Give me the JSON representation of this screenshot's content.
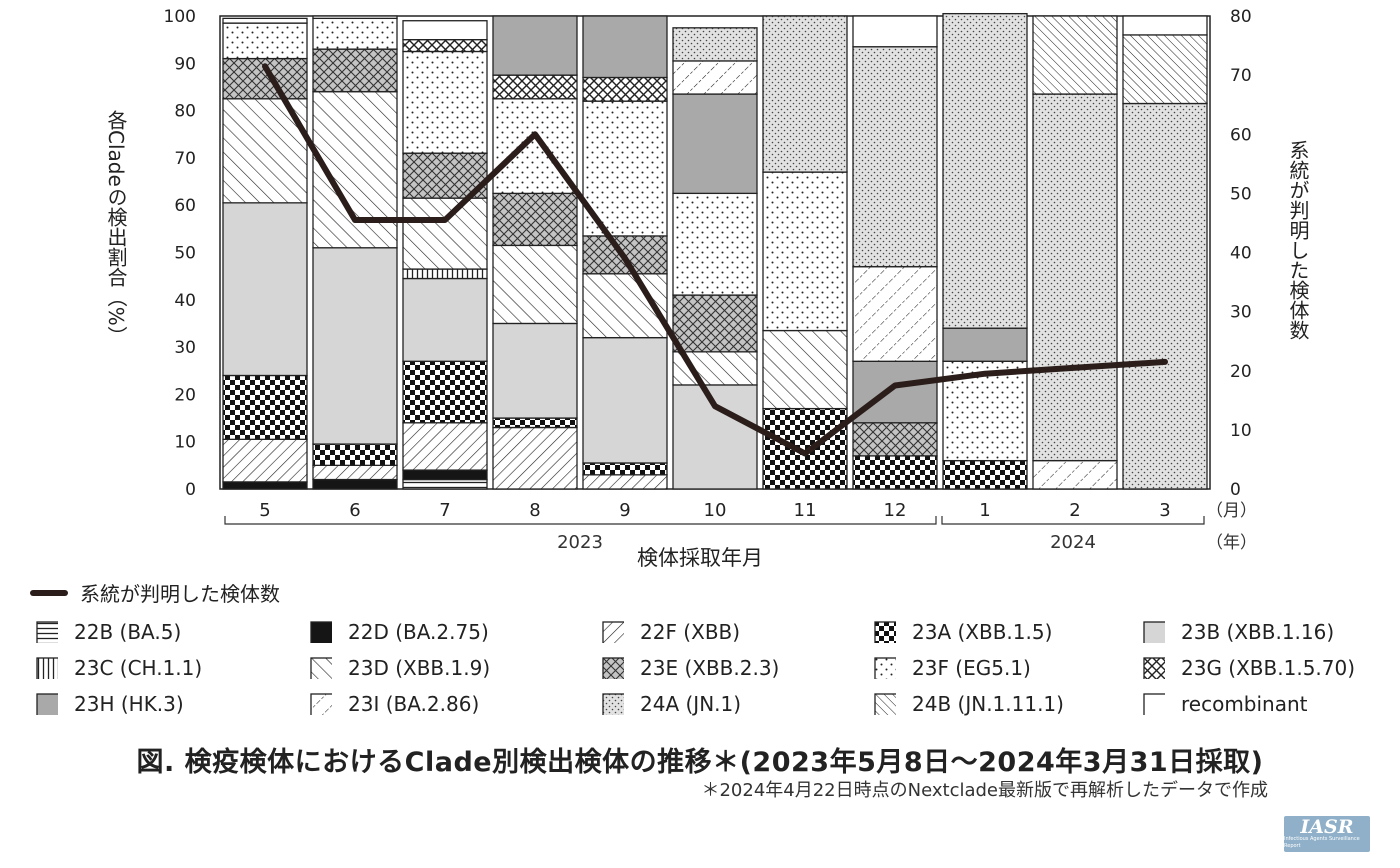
{
  "chart_data": {
    "type": "bar",
    "stacked": true,
    "title": "",
    "ylabel": "各Cladeの検出割合（%）",
    "y2label": "系統が判明した検体数",
    "xlabel": "検体採取年月",
    "ylim": [
      0,
      100
    ],
    "y2lim": [
      0,
      80
    ],
    "yticks": [
      "0",
      "10",
      "20",
      "30",
      "40",
      "50",
      "60",
      "70",
      "80",
      "90",
      "100"
    ],
    "y2ticks": [
      "0",
      "10",
      "20",
      "30",
      "40",
      "50",
      "60",
      "70",
      "80"
    ],
    "categories": [
      "5",
      "6",
      "7",
      "8",
      "9",
      "10",
      "11",
      "12",
      "1",
      "2",
      "3"
    ],
    "month_unit": "（月）",
    "years": [
      {
        "label": "2023",
        "from": 0,
        "to": 7
      },
      {
        "label": "2024",
        "from": 8,
        "to": 10
      }
    ],
    "year_unit": "（年）",
    "series": [
      {
        "name": "22B (BA.5)",
        "pattern": "hlines",
        "values": [
          0,
          0,
          2,
          0,
          0,
          0,
          0,
          0,
          0,
          0,
          0
        ]
      },
      {
        "name": "22D (BA.2.75)",
        "pattern": "solid-black",
        "values": [
          1.5,
          2,
          2,
          0,
          0,
          0,
          0,
          0,
          0,
          0,
          0
        ]
      },
      {
        "name": "22F (XBB)",
        "pattern": "diag-fine",
        "values": [
          9,
          3,
          10,
          13,
          3,
          0,
          0,
          0,
          0,
          0,
          0
        ]
      },
      {
        "name": "23A (XBB.1.5)",
        "pattern": "checker",
        "values": [
          13.5,
          4.5,
          13,
          2,
          2.5,
          0,
          17,
          7,
          6,
          0,
          0
        ]
      },
      {
        "name": "23B (XBB.1.16)",
        "pattern": "light-gray",
        "values": [
          36.5,
          41.5,
          17.5,
          20,
          26.5,
          22,
          0,
          0,
          0,
          0,
          0
        ]
      },
      {
        "name": "23C (CH.1.1)",
        "pattern": "vlines",
        "values": [
          0,
          0,
          2,
          0,
          0,
          0,
          0,
          0,
          0,
          0,
          0
        ]
      },
      {
        "name": "23D (XBB.1.9)",
        "pattern": "diag-coarse",
        "values": [
          22,
          33,
          15,
          16.5,
          13.5,
          7,
          16.5,
          0,
          0,
          0,
          0
        ]
      },
      {
        "name": "23E (XBB.2.3)",
        "pattern": "crosshatch-gray",
        "values": [
          8.5,
          9,
          9.5,
          11,
          8,
          12,
          0,
          7,
          0,
          0,
          0
        ]
      },
      {
        "name": "23F (EG5.1)",
        "pattern": "dots-sparse",
        "values": [
          7.5,
          6.5,
          21.5,
          20,
          28.5,
          21.5,
          33.5,
          0,
          21,
          0,
          0
        ]
      },
      {
        "name": "23G (XBB.1.5.70)",
        "pattern": "crosshatch",
        "values": [
          0,
          0,
          2.5,
          5,
          5,
          0,
          0,
          0,
          0,
          0,
          0
        ]
      },
      {
        "name": "23H (HK.3)",
        "pattern": "mid-gray",
        "values": [
          0,
          0,
          0,
          12.5,
          13,
          21,
          0,
          13,
          7,
          0,
          0
        ]
      },
      {
        "name": "23I (BA.2.86)",
        "pattern": "diag-dots",
        "values": [
          0,
          0,
          0,
          0,
          0,
          7,
          0,
          20,
          0,
          6,
          0
        ]
      },
      {
        "name": "24A (JN.1)",
        "pattern": "dots-dense",
        "values": [
          0,
          0,
          0,
          0,
          0,
          7,
          33,
          46.5,
          66.5,
          77.5,
          81.5
        ]
      },
      {
        "name": "24B (JN.1.11.1)",
        "pattern": "diag-back-fine",
        "values": [
          0,
          0,
          0,
          0,
          0,
          0,
          0,
          0,
          0,
          16.5,
          14.5
        ]
      },
      {
        "name": "recombinant",
        "pattern": "white",
        "values": [
          1,
          0.5,
          4,
          0,
          0,
          0,
          0,
          6.5,
          0,
          0,
          4
        ]
      }
    ],
    "line_series": {
      "name": "系統が判明した検体数",
      "axis": "right",
      "values": [
        71.5,
        45.5,
        45.5,
        60,
        39,
        14,
        6,
        17.5,
        19.5,
        20.5,
        21.5
      ]
    }
  },
  "legend": {
    "line_label": "系統が判明した検体数"
  },
  "caption": {
    "title": "図. 検疫検体におけるClade別検出検体の推移＊(2023年5月8日～2024年3月31日採取)",
    "note": "＊2024年4月22日時点のNextclade最新版で再解析したデータで作成"
  },
  "logo": {
    "main": "IASR",
    "sub": "Infectious Agents Surveillance Report"
  }
}
